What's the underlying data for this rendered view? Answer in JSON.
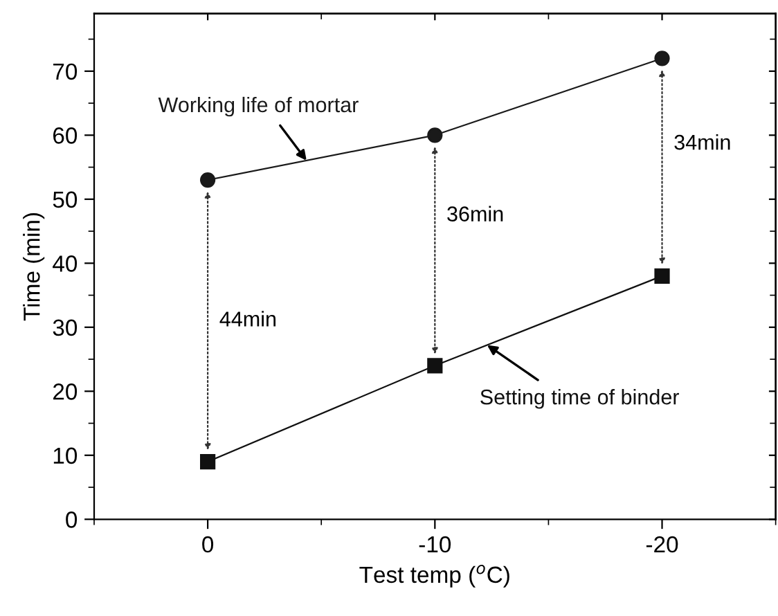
{
  "chart_data": {
    "type": "line",
    "xlabel": "Test temp ($^{o}$C)",
    "ylabel": "Time (min)",
    "x": [
      0,
      -10,
      -20
    ],
    "series": [
      {
        "name": "Working life of mortar",
        "color": "#1a1a1a",
        "marker": "circle",
        "values": [
          53,
          60,
          72
        ]
      },
      {
        "name": "Setting time of binder",
        "color": "#111111",
        "marker": "square",
        "values": [
          9,
          24,
          38
        ]
      }
    ],
    "xlim": [
      5,
      -25
    ],
    "ylim": [
      0,
      79
    ],
    "xticks": [
      {
        "value": 5,
        "label": null
      },
      0,
      {
        "value": -5,
        "label": null
      },
      -10,
      {
        "value": -15,
        "label": null
      },
      -20,
      {
        "value": -25,
        "label": null
      }
    ],
    "yticks": [
      0,
      {
        "value": 5,
        "label": null
      },
      10,
      {
        "value": 15,
        "label": null
      },
      20,
      {
        "value": 25,
        "label": null
      },
      30,
      {
        "value": 35,
        "label": null
      },
      40,
      {
        "value": 45,
        "label": null
      },
      50,
      {
        "value": 55,
        "label": null
      },
      60,
      {
        "value": 65,
        "label": null
      },
      70,
      {
        "value": 75,
        "label": null
      }
    ],
    "annotations": [
      "44min",
      "36min",
      "34min"
    ],
    "grid": false,
    "legend": false
  }
}
